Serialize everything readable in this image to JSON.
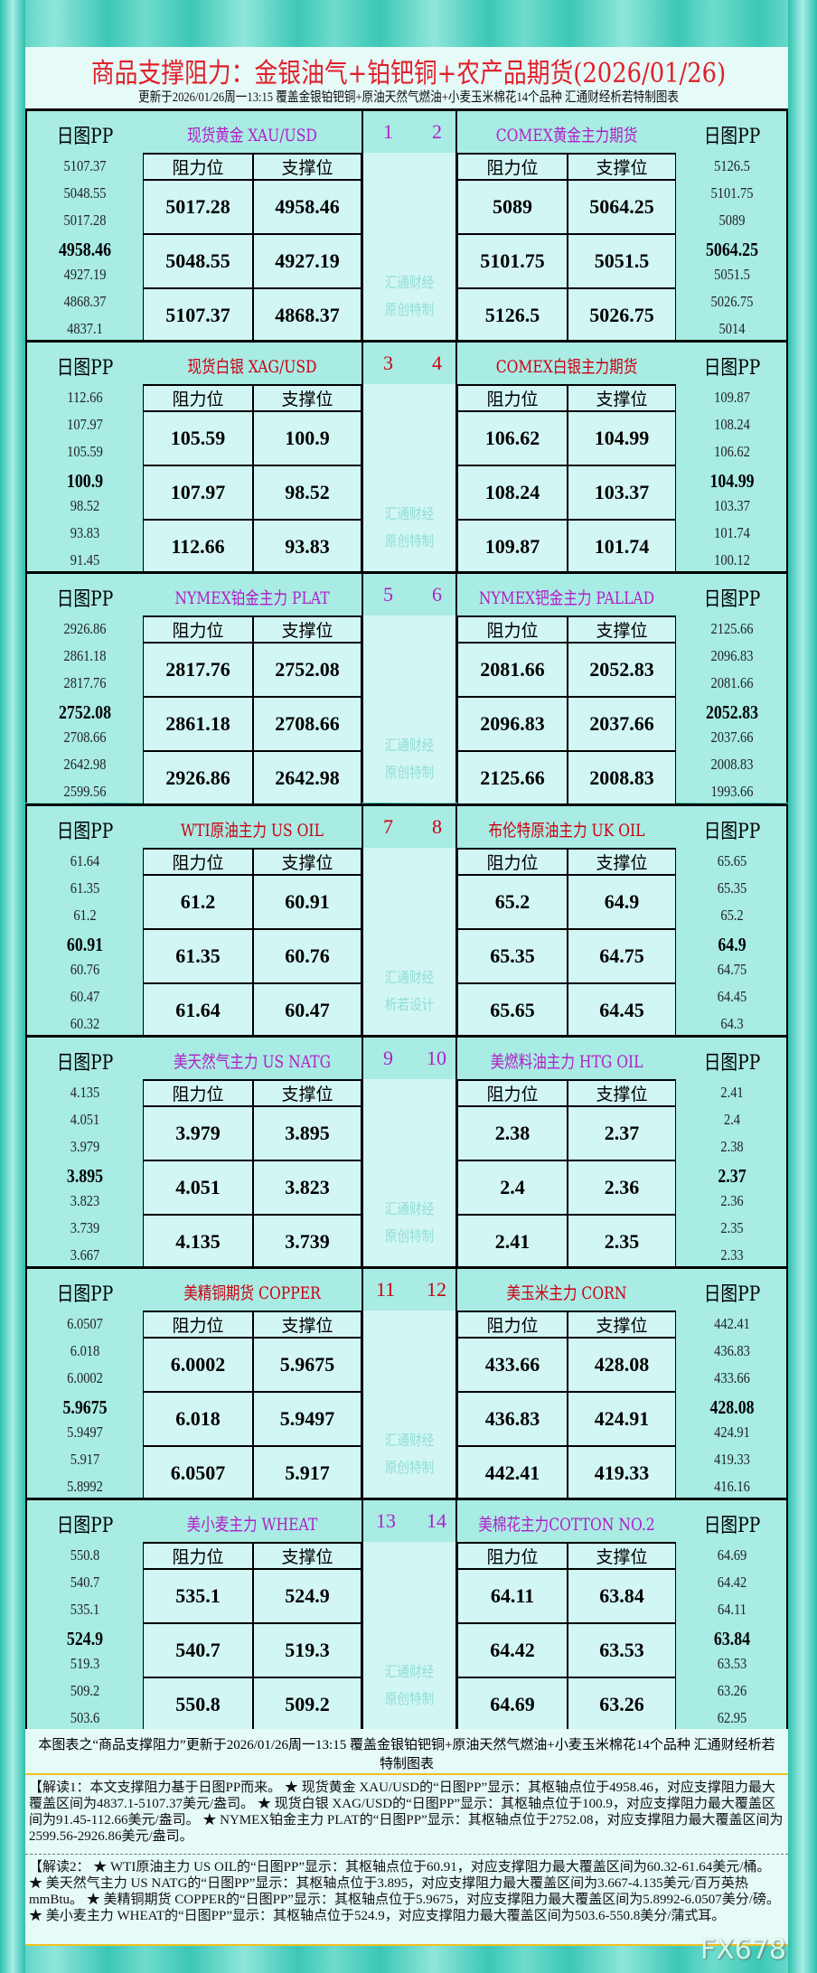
{
  "header": {
    "title": "商品支撑阻力：金银油气+铂钯铜+农产品期货(2026/01/26)",
    "subtitle": "更新于2026/01/26周一13:15 覆盖金银铂钯铜+原油天然气燃油+小麦玉米棉花14个品种 汇通财经析若特制图表"
  },
  "labels": {
    "pp": "日图PP",
    "resist": "阻力位",
    "support": "支撑位"
  },
  "colors": {
    "purple": "#b020c8",
    "red": "#cc0010",
    "title": "#e0202a",
    "bg": "#a8ece4",
    "cell": "#d2f6f3"
  },
  "blocks": [
    {
      "n": [
        "1",
        "2"
      ],
      "color": "purple",
      "wm": [
        "汇通财经",
        "原创特制"
      ],
      "left": {
        "name": "现货黄金 XAU/USD",
        "pp": [
          "5107.37",
          "5048.55",
          "5017.28",
          "4958.46",
          "4927.19",
          "4868.37",
          "4837.1"
        ]
      },
      "right": {
        "name": "COMEX黄金主力期货",
        "pp": [
          "5126.5",
          "5101.75",
          "5089",
          "5064.25",
          "5051.5",
          "5026.75",
          "5014"
        ]
      }
    },
    {
      "n": [
        "3",
        "4"
      ],
      "color": "red",
      "wm": [
        "汇通财经",
        "原创特制"
      ],
      "left": {
        "name": "现货白银 XAG/USD",
        "pp": [
          "112.66",
          "107.97",
          "105.59",
          "100.9",
          "98.52",
          "93.83",
          "91.45"
        ]
      },
      "right": {
        "name": "COMEX白银主力期货",
        "pp": [
          "109.87",
          "108.24",
          "106.62",
          "104.99",
          "103.37",
          "101.74",
          "100.12"
        ]
      }
    },
    {
      "n": [
        "5",
        "6"
      ],
      "color": "purple",
      "wm": [
        "汇通财经",
        "原创特制"
      ],
      "left": {
        "name": "NYMEX铂金主力 PLAT",
        "pp": [
          "2926.86",
          "2861.18",
          "2817.76",
          "2752.08",
          "2708.66",
          "2642.98",
          "2599.56"
        ]
      },
      "right": {
        "name": "NYMEX钯金主力 PALLAD",
        "pp": [
          "2125.66",
          "2096.83",
          "2081.66",
          "2052.83",
          "2037.66",
          "2008.83",
          "1993.66"
        ]
      }
    },
    {
      "n": [
        "7",
        "8"
      ],
      "color": "red",
      "wm": [
        "汇通财经",
        "析若设计"
      ],
      "left": {
        "name": "WTI原油主力 US OIL",
        "pp": [
          "61.64",
          "61.35",
          "61.2",
          "60.91",
          "60.76",
          "60.47",
          "60.32"
        ]
      },
      "right": {
        "name": "布伦特原油主力 UK OIL",
        "pp": [
          "65.65",
          "65.35",
          "65.2",
          "64.9",
          "64.75",
          "64.45",
          "64.3"
        ]
      }
    },
    {
      "n": [
        "9",
        "10"
      ],
      "color": "purple",
      "wm": [
        "汇通财经",
        "原创特制"
      ],
      "left": {
        "name": "美天然气主力 US NATG",
        "pp": [
          "4.135",
          "4.051",
          "3.979",
          "3.895",
          "3.823",
          "3.739",
          "3.667"
        ]
      },
      "right": {
        "name": "美燃料油主力 HTG OIL",
        "pp": [
          "2.41",
          "2.4",
          "2.38",
          "2.37",
          "2.36",
          "2.35",
          "2.33"
        ]
      }
    },
    {
      "n": [
        "11",
        "12"
      ],
      "color": "red",
      "wm": [
        "汇通财经",
        "原创特制"
      ],
      "left": {
        "name": "美精铜期货 COPPER",
        "pp": [
          "6.0507",
          "6.018",
          "6.0002",
          "5.9675",
          "5.9497",
          "5.917",
          "5.8992"
        ]
      },
      "right": {
        "name": "美玉米主力 CORN",
        "pp": [
          "442.41",
          "436.83",
          "433.66",
          "428.08",
          "424.91",
          "419.33",
          "416.16"
        ]
      }
    },
    {
      "n": [
        "13",
        "14"
      ],
      "color": "purple",
      "wm": [
        "汇通财经",
        "原创特制"
      ],
      "left": {
        "name": "美小麦主力 WHEAT",
        "pp": [
          "550.8",
          "540.7",
          "535.1",
          "524.9",
          "519.3",
          "509.2",
          "503.6"
        ]
      },
      "right": {
        "name": "美棉花主力COTTON NO.2",
        "pp": [
          "64.69",
          "64.42",
          "64.11",
          "63.84",
          "63.53",
          "63.26",
          "62.95"
        ]
      }
    }
  ],
  "footer": {
    "note": "本图表之“商品支撑阻力”更新于2026/01/26周一13:15 覆盖金银铂钯铜+原油天然气燃油+小麦玉米棉花14个品种 汇通财经析若特制图表",
    "explain1": "【解读1：本文支撑阻力基于日图PP而来。 ★ 现货黄金 XAU/USD的“日图PP”显示：其枢轴点位于4958.46，对应支撑阻力最大覆盖区间为4837.1-5107.37美元/盎司。 ★ 现货白银 XAG/USD的“日图PP”显示：其枢轴点位于100.9，对应支撑阻力最大覆盖区间为91.45-112.66美元/盎司。 ★ NYMEX铂金主力 PLAT的“日图PP”显示：其枢轴点位于2752.08，对应支撑阻力最大覆盖区间为2599.56-2926.86美元/盎司。",
    "explain2": "【解读2： ★ WTI原油主力 US OIL的“日图PP”显示：其枢轴点位于60.91，对应支撑阻力最大覆盖区间为60.32-61.64美元/桶。 ★ 美天然气主力 US NATG的“日图PP”显示：其枢轴点位于3.895，对应支撑阻力最大覆盖区间为3.667-4.135美元/百万英热mmBtu。 ★ 美精铜期货 COPPER的“日图PP”显示：其枢轴点位于5.9675，对应支撑阻力最大覆盖区间为5.8992-6.0507美分/磅。 ★ 美小麦主力 WHEAT的“日图PP”显示：其枢轴点位于524.9，对应支撑阻力最大覆盖区间为503.6-550.8美分/蒲式耳。",
    "logo": "FX678"
  }
}
